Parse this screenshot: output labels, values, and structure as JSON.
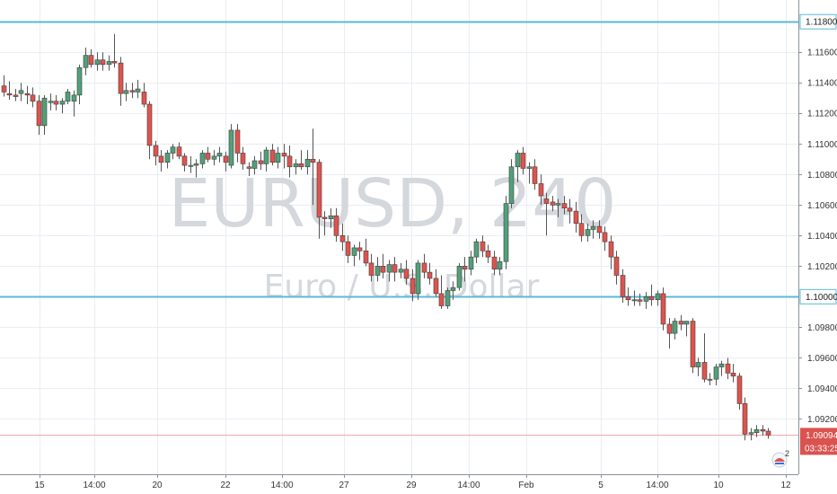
{
  "chart_data": {
    "type": "candlestick",
    "symbol": "EURUSD",
    "timeframe": "240",
    "watermark": "EURUSD, 240",
    "watermark_subtitle": "Euro / U.S. Dollar",
    "y_ticks": [
      "1.11600",
      "1.11400",
      "1.11200",
      "1.11000",
      "1.10800",
      "1.10600",
      "1.10400",
      "1.10200",
      "1.09800",
      "1.09600",
      "1.09400",
      "1.09200"
    ],
    "x_ticks": [
      "15",
      "14:00",
      "20",
      "22",
      "14:00",
      "27",
      "29",
      "14:00",
      "Feb",
      "5",
      "14:00",
      "10",
      "12"
    ],
    "ylim": [
      1.0902,
      1.1186
    ],
    "horizontal_lines": [
      {
        "price": 1.118,
        "label": "1.11800",
        "color": "#5bbad5"
      },
      {
        "price": 1.1,
        "label": "1.10000",
        "color": "#5bbad5"
      }
    ],
    "last_price": {
      "price": 1.09094,
      "label": "1.09094",
      "color": "#d9534f"
    },
    "countdown": "03:33:25",
    "alert_badge_count": "2",
    "colors": {
      "up": "#52a07a",
      "down": "#e0534d",
      "wick": "#555555",
      "grid": "#e9edf2",
      "axis": "#8a8f99"
    },
    "ohlc": [
      [
        1.1138,
        1.1145,
        1.1131,
        1.1134
      ],
      [
        1.1133,
        1.1141,
        1.1129,
        1.1132
      ],
      [
        1.1132,
        1.1136,
        1.1128,
        1.1131
      ],
      [
        1.1133,
        1.114,
        1.1128,
        1.1135
      ],
      [
        1.1133,
        1.1138,
        1.1126,
        1.1132
      ],
      [
        1.1132,
        1.1137,
        1.1124,
        1.1128
      ],
      [
        1.1128,
        1.1132,
        1.1106,
        1.1112
      ],
      [
        1.1112,
        1.1132,
        1.1106,
        1.113
      ],
      [
        1.1127,
        1.1133,
        1.1122,
        1.1128
      ],
      [
        1.1128,
        1.1132,
        1.1122,
        1.1126
      ],
      [
        1.1126,
        1.113,
        1.112,
        1.1128
      ],
      [
        1.1128,
        1.1136,
        1.1126,
        1.1134
      ],
      [
        1.1128,
        1.1135,
        1.1118,
        1.1132
      ],
      [
        1.1132,
        1.1152,
        1.1126,
        1.115
      ],
      [
        1.115,
        1.1163,
        1.1145,
        1.1158
      ],
      [
        1.1158,
        1.1162,
        1.115,
        1.1152
      ],
      [
        1.1152,
        1.116,
        1.1148,
        1.1155
      ],
      [
        1.1155,
        1.116,
        1.1148,
        1.1152
      ],
      [
        1.1152,
        1.1158,
        1.1148,
        1.1154
      ],
      [
        1.1154,
        1.1172,
        1.115,
        1.1153
      ],
      [
        1.1153,
        1.1157,
        1.1125,
        1.1133
      ],
      [
        1.1133,
        1.114,
        1.1128,
        1.1135
      ],
      [
        1.1135,
        1.114,
        1.113,
        1.1134
      ],
      [
        1.1134,
        1.1142,
        1.113,
        1.1136
      ],
      [
        1.1134,
        1.114,
        1.1124,
        1.1126
      ],
      [
        1.1126,
        1.1128,
        1.109,
        1.1099
      ],
      [
        1.1099,
        1.1102,
        1.1086,
        1.1092
      ],
      [
        1.1092,
        1.1096,
        1.1082,
        1.1088
      ],
      [
        1.1088,
        1.1096,
        1.1084,
        1.1094
      ],
      [
        1.1094,
        1.11,
        1.109,
        1.1098
      ],
      [
        1.1098,
        1.1101,
        1.109,
        1.1092
      ],
      [
        1.1092,
        1.1094,
        1.1082,
        1.1086
      ],
      [
        1.1086,
        1.1092,
        1.1081,
        1.1086
      ],
      [
        1.1086,
        1.109,
        1.1078,
        1.1087
      ],
      [
        1.1087,
        1.1096,
        1.1084,
        1.1094
      ],
      [
        1.1094,
        1.1098,
        1.1088,
        1.109
      ],
      [
        1.109,
        1.1096,
        1.1086,
        1.1092
      ],
      [
        1.1092,
        1.1098,
        1.1088,
        1.1094
      ],
      [
        1.1092,
        1.1095,
        1.1082,
        1.1088
      ],
      [
        1.1086,
        1.1113,
        1.1084,
        1.1109
      ],
      [
        1.1109,
        1.1113,
        1.1088,
        1.1094
      ],
      [
        1.1094,
        1.1098,
        1.1083,
        1.1087
      ],
      [
        1.1085,
        1.1088,
        1.1079,
        1.1084
      ],
      [
        1.1084,
        1.1092,
        1.108,
        1.1089
      ],
      [
        1.1089,
        1.1095,
        1.1083,
        1.1087
      ],
      [
        1.1087,
        1.1098,
        1.1082,
        1.1096
      ],
      [
        1.1096,
        1.11,
        1.1086,
        1.1088
      ],
      [
        1.1088,
        1.1098,
        1.1084,
        1.1094
      ],
      [
        1.1094,
        1.11,
        1.1084,
        1.1092
      ],
      [
        1.1092,
        1.1099,
        1.1078,
        1.1085
      ],
      [
        1.1085,
        1.109,
        1.108,
        1.1087
      ],
      [
        1.1087,
        1.1096,
        1.1083,
        1.1085
      ],
      [
        1.1085,
        1.1096,
        1.108,
        1.109
      ],
      [
        1.109,
        1.111,
        1.106,
        1.1088
      ],
      [
        1.1088,
        1.109,
        1.1038,
        1.1052
      ],
      [
        1.1052,
        1.1056,
        1.104,
        1.1051
      ],
      [
        1.1051,
        1.1058,
        1.1045,
        1.1053
      ],
      [
        1.1053,
        1.1058,
        1.1036,
        1.104
      ],
      [
        1.104,
        1.1048,
        1.103,
        1.1036
      ],
      [
        1.1036,
        1.104,
        1.1022,
        1.1027
      ],
      [
        1.1027,
        1.1034,
        1.102,
        1.1032
      ],
      [
        1.1032,
        1.1036,
        1.1024,
        1.103
      ],
      [
        1.103,
        1.1038,
        1.102,
        1.1022
      ],
      [
        1.1022,
        1.1028,
        1.101,
        1.1014
      ],
      [
        1.1014,
        1.1026,
        1.101,
        1.102
      ],
      [
        1.102,
        1.1028,
        1.1012,
        1.1016
      ],
      [
        1.1016,
        1.1024,
        1.101,
        1.1021
      ],
      [
        1.1021,
        1.1026,
        1.101,
        1.1016
      ],
      [
        1.1016,
        1.1022,
        1.1012,
        1.1018
      ],
      [
        1.1018,
        1.1024,
        1.1008,
        1.1012
      ],
      [
        1.1012,
        1.1018,
        1.0997,
        1.1002
      ],
      [
        1.1002,
        1.1024,
        1.0998,
        1.1022
      ],
      [
        1.1022,
        1.1028,
        1.1012,
        1.1016
      ],
      [
        1.1016,
        1.1022,
        1.1008,
        1.1012
      ],
      [
        1.1012,
        1.1018,
        1.1,
        1.1002
      ],
      [
        1.1002,
        1.1014,
        1.0992,
        1.0994
      ],
      [
        1.0994,
        1.1006,
        1.0992,
        1.1004
      ],
      [
        1.1004,
        1.101,
        1.0998,
        1.1006
      ],
      [
        1.1006,
        1.1022,
        1.1004,
        1.102
      ],
      [
        1.102,
        1.1026,
        1.101,
        1.1018
      ],
      [
        1.1018,
        1.103,
        1.1014,
        1.1026
      ],
      [
        1.1026,
        1.1038,
        1.1022,
        1.1036
      ],
      [
        1.1036,
        1.104,
        1.1026,
        1.103
      ],
      [
        1.103,
        1.1034,
        1.1022,
        1.1026
      ],
      [
        1.1026,
        1.103,
        1.1014,
        1.1018
      ],
      [
        1.1018,
        1.1026,
        1.1014,
        1.1023
      ],
      [
        1.1023,
        1.1066,
        1.1018,
        1.1061
      ],
      [
        1.1061,
        1.109,
        1.1058,
        1.1085
      ],
      [
        1.1085,
        1.1096,
        1.1075,
        1.1094
      ],
      [
        1.1094,
        1.1098,
        1.108,
        1.1084
      ],
      [
        1.1084,
        1.1088,
        1.1074,
        1.1085
      ],
      [
        1.1085,
        1.109,
        1.107,
        1.1074
      ],
      [
        1.1074,
        1.108,
        1.106,
        1.1066
      ],
      [
        1.1064,
        1.1068,
        1.104,
        1.1061
      ],
      [
        1.1062,
        1.1066,
        1.1056,
        1.106
      ],
      [
        1.106,
        1.1064,
        1.1052,
        1.1061
      ],
      [
        1.1061,
        1.1066,
        1.1054,
        1.1058
      ],
      [
        1.1058,
        1.1064,
        1.1048,
        1.1056
      ],
      [
        1.1056,
        1.1062,
        1.1042,
        1.1048
      ],
      [
        1.1048,
        1.1054,
        1.1036,
        1.104
      ],
      [
        1.104,
        1.1048,
        1.1036,
        1.1044
      ],
      [
        1.1044,
        1.105,
        1.1038,
        1.1046
      ],
      [
        1.1046,
        1.105,
        1.1038,
        1.1042
      ],
      [
        1.1042,
        1.1046,
        1.103,
        1.1036
      ],
      [
        1.1036,
        1.104,
        1.1018,
        1.1026
      ],
      [
        1.1026,
        1.103,
        1.1008,
        1.1014
      ],
      [
        1.1014,
        1.1018,
        1.0996,
        1.1
      ],
      [
        1.1,
        1.1006,
        1.0994,
        1.0998
      ],
      [
        1.0998,
        1.1004,
        1.0994,
        1.0998
      ],
      [
        1.0998,
        1.1002,
        1.0994,
        1.0997
      ],
      [
        1.0997,
        1.1003,
        1.0992,
        1.1
      ],
      [
        1.1,
        1.1008,
        1.0994,
        1.0998
      ],
      [
        1.0998,
        1.1004,
        1.0994,
        1.1002
      ],
      [
        1.1002,
        1.1006,
        1.0978,
        1.0982
      ],
      [
        1.0982,
        1.0986,
        1.0966,
        1.0976
      ],
      [
        1.0976,
        1.0986,
        1.0972,
        1.0984
      ],
      [
        1.0984,
        1.0988,
        1.0978,
        1.0982
      ],
      [
        1.0982,
        1.0984,
        1.0974,
        1.0984
      ],
      [
        1.0984,
        1.0986,
        1.095,
        1.0954
      ],
      [
        1.0954,
        1.096,
        1.0948,
        1.0957
      ],
      [
        1.0957,
        1.0976,
        1.0944,
        1.0946
      ],
      [
        1.0946,
        1.095,
        1.0942,
        1.0946
      ],
      [
        1.0946,
        1.0956,
        1.0942,
        1.0954
      ],
      [
        1.0954,
        1.0958,
        1.0948,
        1.0956
      ],
      [
        1.0956,
        1.096,
        1.0946,
        1.095
      ],
      [
        1.095,
        1.0956,
        1.0944,
        1.0948
      ],
      [
        1.0948,
        1.095,
        1.0926,
        1.093
      ],
      [
        1.093,
        1.0934,
        1.0906,
        1.091
      ],
      [
        1.091,
        1.0914,
        1.0906,
        1.0911
      ],
      [
        1.0911,
        1.0916,
        1.0908,
        1.0913
      ],
      [
        1.0913,
        1.0916,
        1.0909,
        1.0912
      ],
      [
        1.0912,
        1.0914,
        1.0907,
        1.09094
      ]
    ]
  }
}
